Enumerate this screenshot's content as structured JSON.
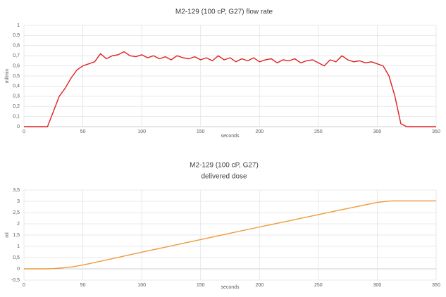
{
  "chart_data": [
    {
      "type": "line",
      "title": "M2-129 (100 cP, G27) flow rate",
      "xlabel": "seconds",
      "ylabel": "ml/min",
      "color": "#e0201e",
      "x": [
        0,
        5,
        10,
        15,
        20,
        25,
        30,
        35,
        40,
        45,
        50,
        55,
        60,
        65,
        70,
        75,
        80,
        85,
        90,
        95,
        100,
        105,
        110,
        115,
        120,
        125,
        130,
        135,
        140,
        145,
        150,
        155,
        160,
        165,
        170,
        175,
        180,
        185,
        190,
        195,
        200,
        205,
        210,
        215,
        220,
        225,
        230,
        235,
        240,
        245,
        250,
        255,
        260,
        265,
        270,
        275,
        280,
        285,
        290,
        295,
        300,
        305,
        310,
        315,
        320,
        325,
        330,
        335,
        340,
        345,
        350
      ],
      "values": [
        0,
        0,
        0,
        0,
        0,
        0.15,
        0.3,
        0.38,
        0.48,
        0.56,
        0.6,
        0.62,
        0.64,
        0.72,
        0.67,
        0.7,
        0.71,
        0.74,
        0.7,
        0.69,
        0.71,
        0.68,
        0.7,
        0.67,
        0.69,
        0.66,
        0.7,
        0.68,
        0.67,
        0.69,
        0.66,
        0.68,
        0.65,
        0.7,
        0.66,
        0.68,
        0.64,
        0.67,
        0.65,
        0.68,
        0.64,
        0.66,
        0.67,
        0.63,
        0.66,
        0.65,
        0.67,
        0.63,
        0.65,
        0.66,
        0.63,
        0.6,
        0.66,
        0.64,
        0.7,
        0.66,
        0.64,
        0.65,
        0.63,
        0.64,
        0.62,
        0.6,
        0.5,
        0.3,
        0.03,
        0,
        0,
        0,
        0,
        0,
        0
      ],
      "xlim": [
        0,
        350
      ],
      "xticks": [
        0,
        50,
        100,
        150,
        200,
        250,
        300,
        350
      ],
      "ylim": [
        0,
        1
      ],
      "yticks": [
        0,
        {
          "value": 0.1,
          "label": "0,1"
        },
        {
          "value": 0.2,
          "label": "0,2"
        },
        {
          "value": 0.3,
          "label": "0,3"
        },
        {
          "value": 0.4,
          "label": "0,4"
        },
        {
          "value": 0.5,
          "label": "0,5"
        },
        {
          "value": 0.6,
          "label": "0,6"
        },
        {
          "value": 0.7,
          "label": "0,7"
        },
        {
          "value": 0.8,
          "label": "0,8"
        },
        {
          "value": 0.9,
          "label": "0,9"
        },
        1
      ],
      "grid": true
    },
    {
      "type": "line",
      "title": "M2-129 (100 cP, G27)",
      "subtitle": "delivered dose",
      "xlabel": "seconds",
      "ylabel": "ml",
      "color": "#ee9a3c",
      "x": [
        0,
        20,
        25,
        30,
        40,
        50,
        75,
        100,
        125,
        150,
        175,
        200,
        225,
        250,
        275,
        300,
        310,
        315,
        320,
        350
      ],
      "values": [
        0,
        0,
        0.01,
        0.03,
        0.08,
        0.17,
        0.45,
        0.74,
        1.02,
        1.3,
        1.58,
        1.86,
        2.13,
        2.41,
        2.68,
        2.95,
        3.01,
        3.02,
        3.02,
        3.02
      ],
      "xlim": [
        0,
        350
      ],
      "xticks": [
        0,
        50,
        100,
        150,
        200,
        250,
        300,
        350
      ],
      "ylim": [
        -0.5,
        3.5
      ],
      "yticks": [
        {
          "value": -0.5,
          "label": "-0,5"
        },
        0,
        {
          "value": 0.5,
          "label": "0,5"
        },
        1,
        {
          "value": 1.5,
          "label": "1,5"
        },
        2,
        {
          "value": 2.5,
          "label": "2,5"
        },
        3,
        {
          "value": 3.5,
          "label": "3,5"
        }
      ],
      "grid": true
    }
  ]
}
